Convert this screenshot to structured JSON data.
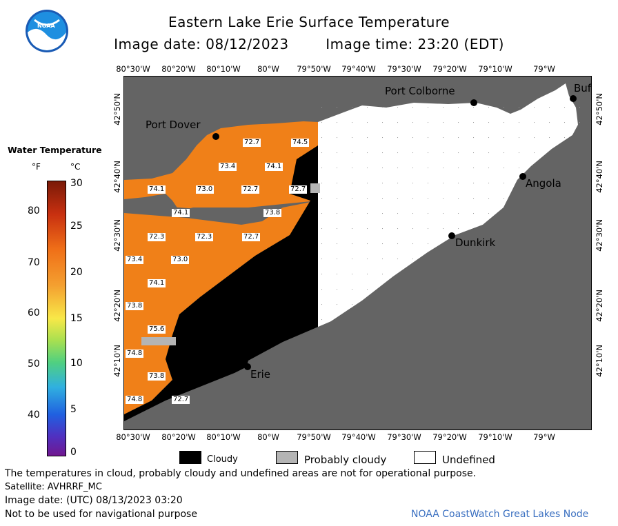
{
  "header": {
    "title": "Eastern Lake Erie Surface Temperature",
    "subtitle_date": "Image date: 08/12/2023",
    "subtitle_time": "Image time: 23:20 (EDT)"
  },
  "logo": {
    "text": "NOAA"
  },
  "map": {
    "lon_labels": [
      "80°30'W",
      "80°20'W",
      "80°10'W",
      "80°W",
      "79°50'W",
      "79°40'W",
      "79°30'W",
      "79°20'W",
      "79°10'W",
      "79°W"
    ],
    "lat_labels": [
      "42°50'N",
      "42°40'N",
      "42°30'N",
      "42°20'N",
      "42°10'N"
    ],
    "cities": [
      "Port Dover",
      "Port Colborne",
      "Buf",
      "Angola",
      "Dunkirk",
      "Erie"
    ],
    "temperature_labels": [
      "72.7",
      "74.5",
      "73.4",
      "74.1",
      "74.1",
      "73.0",
      "72.7",
      "72.7",
      "74.1",
      "73.8",
      "72.3",
      "72.3",
      "72.7",
      "73.4",
      "73.0",
      "74.1",
      "73.8",
      "75.6",
      "74.8",
      "73.8",
      "74.8",
      "72.7"
    ],
    "colors": {
      "land": "#646464",
      "cloud": "#000000",
      "undefined": "#ffffff",
      "warm": "#f08018",
      "probably_cloudy": "#b4b4b4"
    }
  },
  "legend": {
    "title": "Water Temperature",
    "unit_f": "°F",
    "unit_c": "°C",
    "f_ticks": [
      "80",
      "70",
      "60",
      "50",
      "40"
    ],
    "c_ticks": [
      "30",
      "25",
      "20",
      "15",
      "10",
      "5",
      "0"
    ]
  },
  "key": {
    "cloudy": "Cloudy",
    "probably_cloudy": "Probably cloudy",
    "undefined": "Undefined"
  },
  "footer": {
    "disclaimer": "The temperatures in cloud, probably cloudy and undefined areas are not for operational purpose.",
    "satellite": "Satellite: AVHRRF_MC",
    "utc_date": "Image date: (UTC) 08/13/2023  03:20",
    "nav": "Not to be used for navigational purpose",
    "credit": "NOAA CoastWatch Great Lakes Node"
  }
}
